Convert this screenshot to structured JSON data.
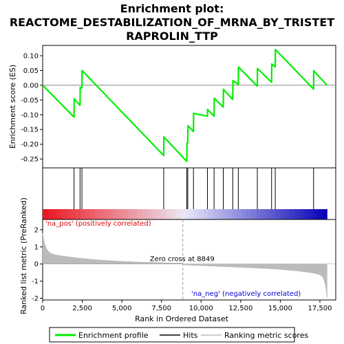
{
  "chart_data": {
    "type": "line",
    "title_line1": "Enrichment plot:",
    "title_line2": "REACTOME_DESTABILIZATION_OF_MRNA_BY_TRISTET",
    "title_line3": "RAPROLIN_TTP",
    "es_panel": {
      "ylabel": "Enrichment score (ES)",
      "ylim": [
        -0.28,
        0.135
      ],
      "yticks": [
        0.1,
        0.05,
        0.0,
        -0.05,
        -0.1,
        -0.15,
        -0.2,
        -0.25
      ],
      "ytick_labels": [
        "0.10",
        "0.05",
        "0.00",
        "-0.05",
        "-0.10",
        "-0.15",
        "-0.20",
        "-0.25"
      ],
      "line_color": "#00ee00",
      "points": [
        [
          0,
          0.0
        ],
        [
          1980,
          -0.108
        ],
        [
          1990,
          -0.046
        ],
        [
          2360,
          -0.068
        ],
        [
          2370,
          -0.007
        ],
        [
          2480,
          -0.009
        ],
        [
          2490,
          0.05
        ],
        [
          7640,
          -0.238
        ],
        [
          7650,
          -0.175
        ],
        [
          9100,
          -0.258
        ],
        [
          9110,
          -0.195
        ],
        [
          9160,
          -0.195
        ],
        [
          9170,
          -0.137
        ],
        [
          9520,
          -0.157
        ],
        [
          9530,
          -0.095
        ],
        [
          10400,
          -0.105
        ],
        [
          10410,
          -0.082
        ],
        [
          10820,
          -0.105
        ],
        [
          10830,
          -0.044
        ],
        [
          11400,
          -0.074
        ],
        [
          11410,
          -0.014
        ],
        [
          12000,
          -0.048
        ],
        [
          12010,
          0.016
        ],
        [
          12350,
          0.002
        ],
        [
          12360,
          0.062
        ],
        [
          13550,
          -0.003
        ],
        [
          13560,
          0.057
        ],
        [
          14450,
          0.01
        ],
        [
          14460,
          0.072
        ],
        [
          14680,
          0.062
        ],
        [
          14690,
          0.121
        ],
        [
          17100,
          -0.013
        ],
        [
          17110,
          0.049
        ],
        [
          17950,
          0.0
        ]
      ]
    },
    "hits": [
      1980,
      2360,
      2480,
      7640,
      9100,
      9160,
      9520,
      10400,
      10820,
      11400,
      12000,
      12350,
      13550,
      14450,
      14680,
      17100
    ],
    "rank_panel": {
      "ylabel": "Ranked list metric (PreRanked)",
      "ylim": [
        -2.1,
        2.6
      ],
      "yticks": [
        2,
        1,
        0,
        -1,
        -2
      ],
      "ytick_labels": [
        "2",
        "1",
        "0",
        "-1",
        "-2"
      ],
      "zero_cross": 8849,
      "zero_cross_label": "Zero cross at 8849",
      "pos_label": "'na_pos' (positively correlated)",
      "neg_label": "'na_neg' (negatively correlated)",
      "pos_color": "#dd0000",
      "neg_color": "#0000cc"
    },
    "xlabel": "Rank in Ordered Dataset",
    "xlim": [
      0,
      18500
    ],
    "n_ranks": 17950,
    "xticks": [
      0,
      2500,
      5000,
      7500,
      10000,
      12500,
      15000,
      17500
    ],
    "xtick_labels": [
      "0",
      "2,500",
      "5,000",
      "7,500",
      "10,000",
      "12,500",
      "15,000",
      "17,500"
    ],
    "legend": {
      "items": [
        {
          "label": "Enrichment profile",
          "color": "#00ee00"
        },
        {
          "label": "Hits",
          "color": "#000000"
        },
        {
          "label": "Ranking metric scores",
          "color": "#bbbbbb"
        }
      ]
    }
  }
}
